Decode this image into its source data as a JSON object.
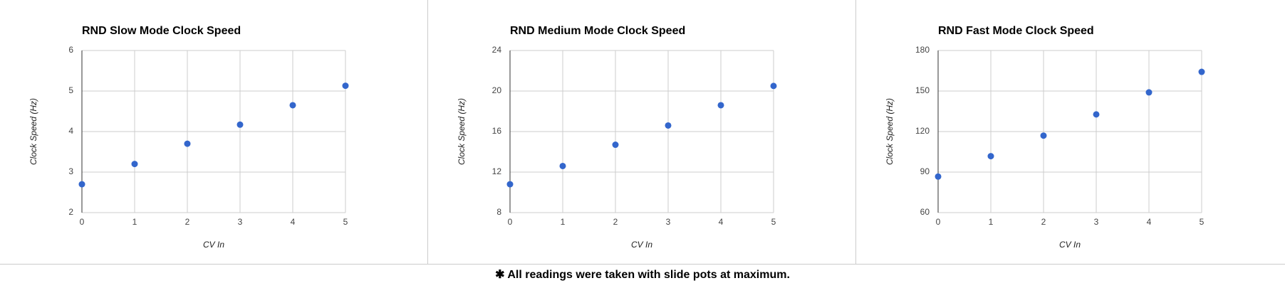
{
  "chart_data": [
    {
      "type": "scatter",
      "title": "RND Slow Mode Clock Speed",
      "x_label": "CV In",
      "y_label": "Clock Speed (Hz)",
      "x": [
        0,
        1,
        2,
        3,
        4,
        5
      ],
      "values": [
        2.7,
        3.2,
        3.7,
        4.17,
        4.65,
        5.13
      ],
      "color": "#3366cc",
      "xlim": [
        0,
        5
      ],
      "xticks": [
        0,
        1,
        2,
        3,
        4,
        5
      ],
      "ylim": [
        2,
        6
      ],
      "yticks": [
        2,
        3,
        4,
        5,
        6
      ],
      "grid": true
    },
    {
      "type": "scatter",
      "title": "RND Medium Mode Clock Speed",
      "x_label": "CV In",
      "y_label": "Clock Speed (Hz)",
      "x": [
        0,
        1,
        2,
        3,
        4,
        5
      ],
      "values": [
        10.8,
        12.6,
        14.7,
        16.6,
        18.6,
        20.5
      ],
      "color": "#3366cc",
      "xlim": [
        0,
        5
      ],
      "xticks": [
        0,
        1,
        2,
        3,
        4,
        5
      ],
      "ylim": [
        8,
        24
      ],
      "yticks": [
        8,
        12,
        16,
        20,
        24
      ],
      "grid": true
    },
    {
      "type": "scatter",
      "title": "RND Fast Mode Clock Speed",
      "x_label": "CV In",
      "y_label": "Clock Speed (Hz)",
      "x": [
        0,
        1,
        2,
        3,
        4,
        5
      ],
      "values": [
        86.7,
        101.8,
        117,
        132.7,
        149,
        164.2
      ],
      "color": "#3366cc",
      "xlim": [
        0,
        5
      ],
      "xticks": [
        0,
        1,
        2,
        3,
        4,
        5
      ],
      "ylim": [
        60,
        180
      ],
      "yticks": [
        60,
        90,
        120,
        150,
        180
      ],
      "grid": true
    }
  ],
  "footnote": "✱ All readings were taken with slide pots at maximum."
}
